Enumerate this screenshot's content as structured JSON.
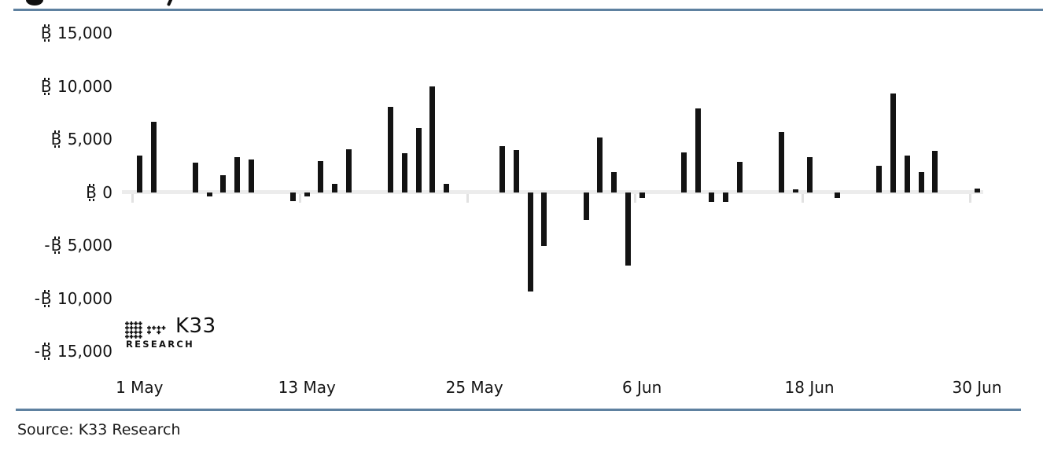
{
  "page": {
    "background": "#ffffff",
    "rule_color": "#5e81a0",
    "bar_color": "#131313",
    "axis_line_color": "#ececec"
  },
  "logo": {
    "title": "K33",
    "subtitle": "RESEARCH"
  },
  "source": {
    "text": "Source: K33 Research"
  },
  "chart_data": {
    "type": "bar",
    "grid": false,
    "currency_symbol": "₿",
    "x_axis": {
      "start_label": "1 May",
      "end_label": "30 Jun",
      "tick_labels": [
        {
          "day": 0,
          "label": "1 May"
        },
        {
          "day": 12,
          "label": "13 May"
        },
        {
          "day": 24,
          "label": "25 May"
        },
        {
          "day": 36,
          "label": "6 Jun"
        },
        {
          "day": 48,
          "label": "18 Jun"
        },
        {
          "day": 60,
          "label": "30 Jun"
        }
      ]
    },
    "y_axis": {
      "min": -15000,
      "max": 15000,
      "step": 5000,
      "tick_labels": [
        {
          "value": 15000,
          "label": "₿ 15,000"
        },
        {
          "value": 10000,
          "label": "₿ 10,000"
        },
        {
          "value": 5000,
          "label": "₿ 5,000"
        },
        {
          "value": 0,
          "label": "₿ 0"
        },
        {
          "value": -5000,
          "label": "-₿ 5,000"
        },
        {
          "value": -10000,
          "label": "-₿ 10,000"
        },
        {
          "value": -15000,
          "label": "-₿ 15,000"
        }
      ]
    },
    "points": [
      {
        "day": 0,
        "date": "1 May",
        "value": 3500
      },
      {
        "day": 1,
        "date": "2 May",
        "value": 6700
      },
      {
        "day": 4,
        "date": "5 May",
        "value": 2800
      },
      {
        "day": 5,
        "date": "6 May",
        "value": -400
      },
      {
        "day": 6,
        "date": "7 May",
        "value": 1600
      },
      {
        "day": 7,
        "date": "8 May",
        "value": 3300
      },
      {
        "day": 8,
        "date": "9 May",
        "value": 3100
      },
      {
        "day": 11,
        "date": "12 May",
        "value": -800
      },
      {
        "day": 12,
        "date": "13 May",
        "value": -400
      },
      {
        "day": 13,
        "date": "14 May",
        "value": 3000
      },
      {
        "day": 14,
        "date": "15 May",
        "value": 800
      },
      {
        "day": 15,
        "date": "16 May",
        "value": 4100
      },
      {
        "day": 18,
        "date": "19 May",
        "value": 8100
      },
      {
        "day": 19,
        "date": "20 May",
        "value": 3700
      },
      {
        "day": 20,
        "date": "21 May",
        "value": 6100
      },
      {
        "day": 21,
        "date": "22 May",
        "value": 10000
      },
      {
        "day": 22,
        "date": "23 May",
        "value": 800
      },
      {
        "day": 26,
        "date": "27 May",
        "value": 4400
      },
      {
        "day": 27,
        "date": "28 May",
        "value": 4000
      },
      {
        "day": 28,
        "date": "29 May",
        "value": -9300
      },
      {
        "day": 29,
        "date": "30 May",
        "value": -5000
      },
      {
        "day": 32,
        "date": "2 Jun",
        "value": -2600
      },
      {
        "day": 33,
        "date": "3 Jun",
        "value": 5200
      },
      {
        "day": 34,
        "date": "4 Jun",
        "value": 1900
      },
      {
        "day": 35,
        "date": "5 Jun",
        "value": -6900
      },
      {
        "day": 36,
        "date": "6 Jun",
        "value": -500
      },
      {
        "day": 39,
        "date": "9 Jun",
        "value": 3800
      },
      {
        "day": 40,
        "date": "10 Jun",
        "value": 7900
      },
      {
        "day": 41,
        "date": "11 Jun",
        "value": -900
      },
      {
        "day": 42,
        "date": "12 Jun",
        "value": -900
      },
      {
        "day": 43,
        "date": "13 Jun",
        "value": 2900
      },
      {
        "day": 46,
        "date": "16 Jun",
        "value": 5700
      },
      {
        "day": 47,
        "date": "17 Jun",
        "value": 300
      },
      {
        "day": 48,
        "date": "18 Jun",
        "value": 3300
      },
      {
        "day": 50,
        "date": "20 Jun",
        "value": -500
      },
      {
        "day": 53,
        "date": "23 Jun",
        "value": 2500
      },
      {
        "day": 54,
        "date": "24 Jun",
        "value": 9300
      },
      {
        "day": 55,
        "date": "25 Jun",
        "value": 3500
      },
      {
        "day": 56,
        "date": "26 Jun",
        "value": 1900
      },
      {
        "day": 57,
        "date": "27 Jun",
        "value": 3900
      },
      {
        "day": 60,
        "date": "30 Jun",
        "value": 400
      }
    ]
  }
}
